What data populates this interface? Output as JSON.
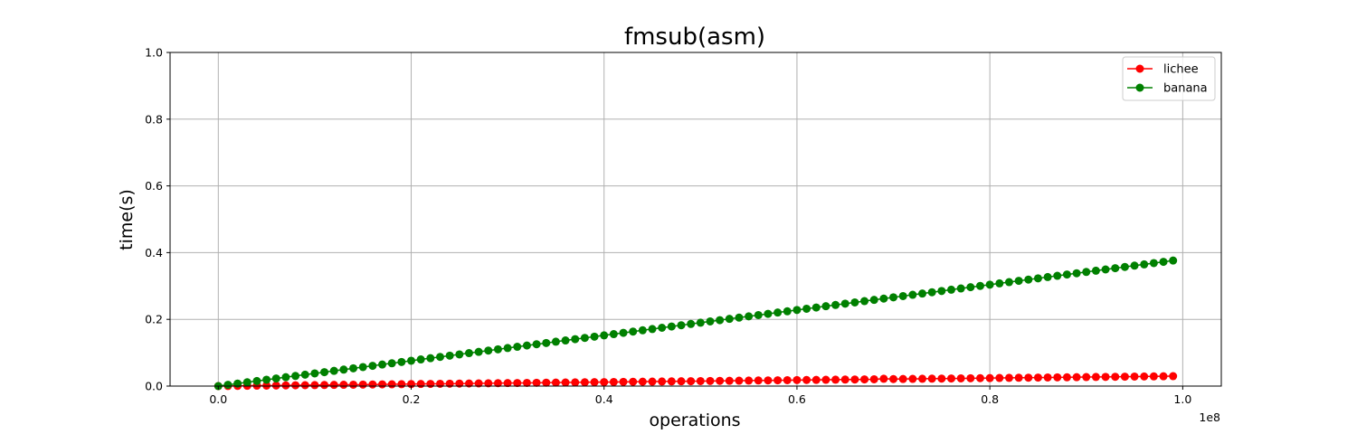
{
  "chart_data": {
    "type": "line",
    "title": "fmsub(asm)",
    "xlabel": "operations",
    "ylabel": "time(s)",
    "x_offset_label": "1e8",
    "x_unit_multiplier": 100000000,
    "xlim": [
      -0.05,
      1.04
    ],
    "ylim": [
      0,
      1.0
    ],
    "xticks": [
      0.0,
      0.2,
      0.4,
      0.6,
      0.8,
      1.0
    ],
    "xtick_labels": [
      "0.0",
      "0.2",
      "0.4",
      "0.6",
      "0.8",
      "1.0"
    ],
    "yticks": [
      0.0,
      0.2,
      0.4,
      0.6,
      0.8,
      1.0
    ],
    "ytick_labels": [
      "0.0",
      "0.2",
      "0.4",
      "0.6",
      "0.8",
      "1.0"
    ],
    "grid": true,
    "legend_position": "top-right",
    "x": [
      0,
      1000000,
      2000000,
      3000000,
      4000000,
      5000000,
      6000000,
      7000000,
      8000000,
      9000000,
      10000000,
      11000000,
      12000000,
      13000000,
      14000000,
      15000000,
      16000000,
      17000000,
      18000000,
      19000000,
      20000000,
      21000000,
      22000000,
      23000000,
      24000000,
      25000000,
      26000000,
      27000000,
      28000000,
      29000000,
      30000000,
      31000000,
      32000000,
      33000000,
      34000000,
      35000000,
      36000000,
      37000000,
      38000000,
      39000000,
      40000000,
      41000000,
      42000000,
      43000000,
      44000000,
      45000000,
      46000000,
      47000000,
      48000000,
      49000000,
      50000000,
      51000000,
      52000000,
      53000000,
      54000000,
      55000000,
      56000000,
      57000000,
      58000000,
      59000000,
      60000000,
      61000000,
      62000000,
      63000000,
      64000000,
      65000000,
      66000000,
      67000000,
      68000000,
      69000000,
      70000000,
      71000000,
      72000000,
      73000000,
      74000000,
      75000000,
      76000000,
      77000000,
      78000000,
      79000000,
      80000000,
      81000000,
      82000000,
      83000000,
      84000000,
      85000000,
      86000000,
      87000000,
      88000000,
      89000000,
      90000000,
      91000000,
      92000000,
      93000000,
      94000000,
      95000000,
      96000000,
      97000000,
      98000000,
      99000000
    ],
    "series": [
      {
        "name": "lichee",
        "color": "#ff0000",
        "values": [
          0.0,
          0.0003,
          0.0006,
          0.0009,
          0.0012,
          0.0015,
          0.0018,
          0.0021,
          0.0024,
          0.0027,
          0.003,
          0.0033,
          0.0036,
          0.0039,
          0.0042,
          0.0045,
          0.0048,
          0.0051,
          0.0054,
          0.0057,
          0.006,
          0.0063,
          0.0066,
          0.0069,
          0.0072,
          0.0075,
          0.0078,
          0.0081,
          0.0084,
          0.0087,
          0.009,
          0.0093,
          0.0096,
          0.0099,
          0.0102,
          0.0105,
          0.0108,
          0.0111,
          0.0114,
          0.0117,
          0.012,
          0.0123,
          0.0126,
          0.0129,
          0.0132,
          0.0135,
          0.0138,
          0.0141,
          0.0144,
          0.0147,
          0.015,
          0.0153,
          0.0156,
          0.0159,
          0.0162,
          0.0165,
          0.0168,
          0.0171,
          0.0174,
          0.0177,
          0.018,
          0.0183,
          0.0186,
          0.0189,
          0.0192,
          0.0195,
          0.0198,
          0.0201,
          0.0204,
          0.022,
          0.021,
          0.0213,
          0.0216,
          0.0219,
          0.0222,
          0.0225,
          0.0228,
          0.0231,
          0.0234,
          0.0237,
          0.024,
          0.0243,
          0.0246,
          0.0249,
          0.0252,
          0.0255,
          0.0258,
          0.0261,
          0.0264,
          0.0267,
          0.027,
          0.0273,
          0.0276,
          0.0279,
          0.0282,
          0.0285,
          0.0288,
          0.0291,
          0.0294,
          0.0297
        ]
      },
      {
        "name": "banana",
        "color": "#008000",
        "values": [
          0.0,
          0.0038,
          0.0076,
          0.0114,
          0.0152,
          0.019,
          0.0228,
          0.0266,
          0.0304,
          0.0342,
          0.038,
          0.0418,
          0.0456,
          0.0494,
          0.0532,
          0.057,
          0.0608,
          0.0646,
          0.0684,
          0.0722,
          0.076,
          0.0798,
          0.0836,
          0.0874,
          0.0912,
          0.095,
          0.0988,
          0.1026,
          0.1064,
          0.1102,
          0.114,
          0.1178,
          0.1216,
          0.1254,
          0.1292,
          0.133,
          0.1368,
          0.1406,
          0.1444,
          0.1482,
          0.152,
          0.1558,
          0.1596,
          0.1634,
          0.1672,
          0.171,
          0.1748,
          0.1786,
          0.1824,
          0.1862,
          0.19,
          0.1938,
          0.1976,
          0.2014,
          0.2052,
          0.209,
          0.2128,
          0.2166,
          0.2204,
          0.2242,
          0.228,
          0.2318,
          0.2356,
          0.2394,
          0.2432,
          0.247,
          0.2508,
          0.2546,
          0.2584,
          0.2622,
          0.266,
          0.2698,
          0.2736,
          0.2774,
          0.2812,
          0.285,
          0.2888,
          0.2926,
          0.2964,
          0.3002,
          0.304,
          0.3078,
          0.3116,
          0.3154,
          0.3192,
          0.323,
          0.3268,
          0.3306,
          0.3344,
          0.3382,
          0.342,
          0.3458,
          0.3496,
          0.3534,
          0.3572,
          0.361,
          0.3648,
          0.3686,
          0.3724,
          0.3762
        ]
      }
    ]
  }
}
